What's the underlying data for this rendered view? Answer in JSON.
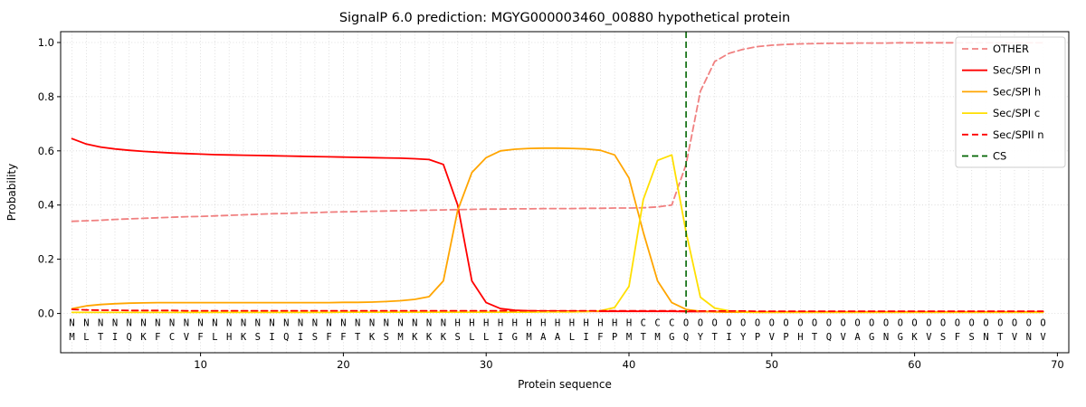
{
  "chart_data": {
    "type": "line",
    "title": "SignalP 6.0 prediction: MGYG000003460_00880 hypothetical protein",
    "xlabel": "Protein sequence",
    "ylabel": "Probability",
    "xlim": [
      0.2,
      70.8
    ],
    "ylim": [
      -0.145,
      1.04
    ],
    "xticks": [
      10,
      20,
      30,
      40,
      50,
      60,
      70
    ],
    "yticks": [
      0.0,
      0.2,
      0.4,
      0.6,
      0.8,
      1.0
    ],
    "grid": "dotted",
    "legend_position": "upper right",
    "sequence": "MLTIQKFCVFLHKSIQISFFTKSMKKKSLLIGMAALIFPMTMGQYTIYPVPHTQVAGNGKVSFSNTVNV",
    "region_labels": "NNNNNNNNNNNNNNNNNNNNNNNNNNNHHHHHHHHHHHHHCCCOOOOOOOOOOOOOOOOOOOOOOOOOO",
    "region_colors": {
      "N": "#ff0000",
      "H": "#ffa500",
      "C": "#eec000",
      "O": "#ababab"
    },
    "sequence_color": "#262626",
    "cs_position": 44,
    "x": [
      1,
      2,
      3,
      4,
      5,
      6,
      7,
      8,
      9,
      10,
      11,
      12,
      13,
      14,
      15,
      16,
      17,
      18,
      19,
      20,
      21,
      22,
      23,
      24,
      25,
      26,
      27,
      28,
      29,
      30,
      31,
      32,
      33,
      34,
      35,
      36,
      37,
      38,
      39,
      40,
      41,
      42,
      43,
      44,
      45,
      46,
      47,
      48,
      49,
      50,
      51,
      52,
      53,
      54,
      55,
      56,
      57,
      58,
      59,
      60,
      61,
      62,
      63,
      64,
      65,
      66,
      67,
      68,
      69
    ],
    "series": [
      {
        "name": "OTHER",
        "color": "#f08080",
        "style": "dashed",
        "values": [
          0.34,
          0.342,
          0.344,
          0.347,
          0.349,
          0.351,
          0.353,
          0.355,
          0.357,
          0.358,
          0.36,
          0.362,
          0.364,
          0.366,
          0.368,
          0.369,
          0.371,
          0.372,
          0.374,
          0.375,
          0.376,
          0.377,
          0.378,
          0.379,
          0.38,
          0.381,
          0.382,
          0.383,
          0.384,
          0.385,
          0.385,
          0.386,
          0.386,
          0.387,
          0.387,
          0.387,
          0.388,
          0.388,
          0.389,
          0.389,
          0.39,
          0.393,
          0.4,
          0.55,
          0.82,
          0.93,
          0.96,
          0.975,
          0.985,
          0.99,
          0.993,
          0.995,
          0.996,
          0.997,
          0.997,
          0.998,
          0.998,
          0.998,
          0.999,
          0.999,
          0.999,
          0.999,
          0.999,
          0.999,
          0.999,
          0.999,
          0.999,
          0.999,
          0.999
        ]
      },
      {
        "name": "Sec/SPI n",
        "color": "#ff0000",
        "style": "solid",
        "values": [
          0.645,
          0.625,
          0.614,
          0.607,
          0.602,
          0.598,
          0.595,
          0.592,
          0.59,
          0.588,
          0.586,
          0.585,
          0.584,
          0.583,
          0.582,
          0.581,
          0.58,
          0.579,
          0.578,
          0.577,
          0.576,
          0.575,
          0.574,
          0.573,
          0.571,
          0.568,
          0.55,
          0.4,
          0.12,
          0.04,
          0.018,
          0.012,
          0.01,
          0.009,
          0.009,
          0.008,
          0.008,
          0.008,
          0.008,
          0.008,
          0.008,
          0.008,
          0.008,
          0.007,
          0.007,
          0.007,
          0.006,
          0.006,
          0.006,
          0.006,
          0.006,
          0.006,
          0.006,
          0.006,
          0.006,
          0.006,
          0.006,
          0.006,
          0.006,
          0.006,
          0.006,
          0.006,
          0.006,
          0.006,
          0.006,
          0.006,
          0.006,
          0.006,
          0.006
        ]
      },
      {
        "name": "Sec/SPI h",
        "color": "#ffa500",
        "style": "solid",
        "values": [
          0.018,
          0.028,
          0.033,
          0.036,
          0.038,
          0.039,
          0.04,
          0.04,
          0.04,
          0.04,
          0.04,
          0.04,
          0.04,
          0.04,
          0.04,
          0.04,
          0.04,
          0.04,
          0.04,
          0.041,
          0.041,
          0.042,
          0.044,
          0.047,
          0.052,
          0.062,
          0.12,
          0.38,
          0.52,
          0.575,
          0.6,
          0.606,
          0.609,
          0.61,
          0.61,
          0.609,
          0.607,
          0.602,
          0.585,
          0.5,
          0.3,
          0.12,
          0.04,
          0.015,
          0.008,
          0.006,
          0.005,
          0.005,
          0.004,
          0.004,
          0.004,
          0.004,
          0.004,
          0.004,
          0.004,
          0.004,
          0.004,
          0.004,
          0.004,
          0.004,
          0.004,
          0.004,
          0.004,
          0.004,
          0.004,
          0.004,
          0.004,
          0.004,
          0.004
        ]
      },
      {
        "name": "Sec/SPI c",
        "color": "#ffdf00",
        "style": "solid",
        "values": [
          0.004,
          0.004,
          0.004,
          0.004,
          0.004,
          0.004,
          0.004,
          0.004,
          0.004,
          0.004,
          0.004,
          0.004,
          0.004,
          0.004,
          0.004,
          0.004,
          0.004,
          0.004,
          0.004,
          0.005,
          0.005,
          0.005,
          0.005,
          0.005,
          0.005,
          0.005,
          0.005,
          0.005,
          0.005,
          0.005,
          0.005,
          0.005,
          0.005,
          0.006,
          0.006,
          0.006,
          0.007,
          0.01,
          0.022,
          0.1,
          0.42,
          0.565,
          0.585,
          0.3,
          0.06,
          0.02,
          0.01,
          0.006,
          0.005,
          0.005,
          0.005,
          0.005,
          0.005,
          0.005,
          0.005,
          0.005,
          0.005,
          0.005,
          0.005,
          0.005,
          0.005,
          0.005,
          0.005,
          0.005,
          0.005,
          0.005,
          0.005,
          0.005,
          0.005
        ]
      },
      {
        "name": "Sec/SPII n",
        "color": "#ff0000",
        "style": "dashed",
        "values": [
          0.015,
          0.013,
          0.012,
          0.012,
          0.011,
          0.011,
          0.011,
          0.011,
          0.01,
          0.01,
          0.01,
          0.01,
          0.01,
          0.01,
          0.01,
          0.01,
          0.01,
          0.01,
          0.01,
          0.01,
          0.01,
          0.01,
          0.01,
          0.01,
          0.01,
          0.01,
          0.01,
          0.01,
          0.01,
          0.01,
          0.01,
          0.01,
          0.01,
          0.01,
          0.01,
          0.01,
          0.01,
          0.01,
          0.01,
          0.01,
          0.01,
          0.01,
          0.01,
          0.009,
          0.009,
          0.009,
          0.009,
          0.009,
          0.008,
          0.008,
          0.008,
          0.008,
          0.008,
          0.008,
          0.008,
          0.008,
          0.008,
          0.008,
          0.008,
          0.008,
          0.008,
          0.008,
          0.008,
          0.008,
          0.008,
          0.008,
          0.008,
          0.008,
          0.008
        ]
      },
      {
        "name": "CS",
        "color": "#006400",
        "style": "dashed",
        "vertical": true
      }
    ]
  }
}
